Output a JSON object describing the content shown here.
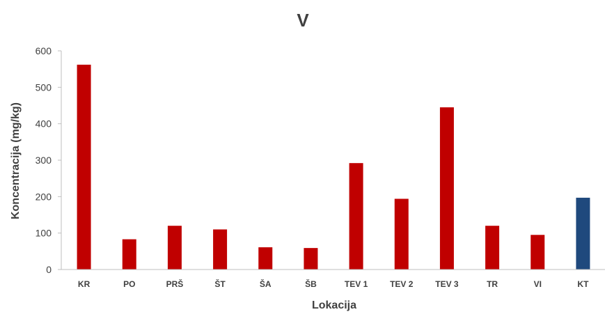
{
  "chart_data": {
    "type": "bar",
    "title": "V",
    "xlabel": "Lokacija",
    "ylabel": "Koncentracija (mg/kg)",
    "ylim": [
      0,
      600
    ],
    "yticks": [
      0,
      100,
      200,
      300,
      400,
      500,
      600
    ],
    "grid": false,
    "categories": [
      "KR",
      "PO",
      "PRŠ",
      "ŠT",
      "ŠA",
      "ŠB",
      "TEV 1",
      "TEV 2",
      "TEV 3",
      "TR",
      "VI",
      "KT"
    ],
    "values": [
      562,
      83,
      120,
      110,
      61,
      59,
      292,
      194,
      445,
      120,
      95,
      197
    ],
    "colors": [
      "#c00000",
      "#c00000",
      "#c00000",
      "#c00000",
      "#c00000",
      "#c00000",
      "#c00000",
      "#c00000",
      "#c00000",
      "#c00000",
      "#c00000",
      "#1f497d"
    ]
  }
}
